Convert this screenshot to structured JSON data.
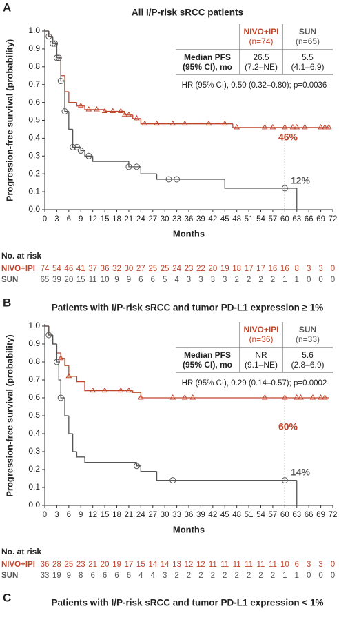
{
  "chart_data": [
    {
      "type": "line",
      "panel": "A",
      "title": "All I/P-risk sRCC patients",
      "x_label": "Months",
      "y_label": "Progression-free survival (probability)",
      "xlim": [
        0,
        72
      ],
      "ylim": [
        0,
        1
      ],
      "xticks": [
        0,
        3,
        6,
        9,
        12,
        15,
        18,
        21,
        24,
        27,
        30,
        33,
        36,
        39,
        42,
        45,
        48,
        51,
        54,
        57,
        60,
        63,
        66,
        69,
        72
      ],
      "yticks": [
        {
          "value": 0,
          "label": "0.0"
        },
        0.1,
        0.2,
        0.3,
        0.4,
        0.5,
        0.6,
        0.7,
        0.8,
        0.9,
        {
          "value": 1,
          "label": "1.0"
        }
      ],
      "series": [
        {
          "name": "NIVO+IPI",
          "color": "#c0462b",
          "marker": "triangle",
          "end_label": "46%",
          "x": [
            0,
            1,
            2,
            3,
            4,
            5,
            6,
            8,
            10,
            15,
            20,
            22,
            24,
            47,
            71
          ],
          "values": [
            1,
            0.97,
            0.93,
            0.85,
            0.75,
            0.66,
            0.6,
            0.58,
            0.56,
            0.55,
            0.53,
            0.51,
            0.48,
            0.46,
            0.46
          ],
          "censored": {
            "x": [
              9,
              11,
              13,
              15,
              17,
              19,
              20,
              21,
              23,
              25,
              28,
              32,
              35,
              41,
              45,
              48,
              55,
              57,
              60,
              62,
              63,
              65,
              69,
              70,
              71
            ],
            "values": [
              0.58,
              0.56,
              0.56,
              0.55,
              0.55,
              0.55,
              0.53,
              0.53,
              0.51,
              0.48,
              0.48,
              0.48,
              0.48,
              0.48,
              0.48,
              0.46,
              0.46,
              0.46,
              0.46,
              0.46,
              0.46,
              0.46,
              0.46,
              0.46,
              0.46
            ]
          },
          "at_risk": [
            74,
            54,
            46,
            41,
            37,
            36,
            32,
            30,
            27,
            25,
            25,
            24,
            23,
            22,
            20,
            19,
            18,
            17,
            17,
            16,
            16,
            8,
            3,
            3,
            0
          ]
        },
        {
          "name": "SUN",
          "color": "#555555",
          "marker": "circle",
          "end_label": "12%",
          "x": [
            0,
            1,
            2,
            3,
            4,
            5,
            6,
            7,
            9,
            10,
            12,
            21,
            24,
            28,
            45,
            63
          ],
          "values": [
            1,
            0.97,
            0.93,
            0.85,
            0.72,
            0.55,
            0.45,
            0.35,
            0.33,
            0.3,
            0.27,
            0.24,
            0.2,
            0.17,
            0.12,
            0
          ],
          "censored": {
            "x": [
              1,
              2,
              2.5,
              3,
              3.5,
              4,
              5,
              7,
              8,
              9,
              11,
              21,
              23,
              31,
              33,
              60
            ],
            "values": [
              0.97,
              0.93,
              0.93,
              0.85,
              0.85,
              0.72,
              0.55,
              0.35,
              0.35,
              0.33,
              0.3,
              0.24,
              0.24,
              0.17,
              0.17,
              0.12
            ]
          },
          "at_risk": [
            65,
            39,
            20,
            15,
            11,
            10,
            9,
            9,
            6,
            6,
            5,
            4,
            3,
            3,
            3,
            3,
            2,
            2,
            2,
            2,
            1,
            1,
            0,
            0,
            0
          ]
        }
      ],
      "at_risk_title": "No. at risk",
      "table": {
        "columns": [
          [
            "NIVO+IPI",
            "(n=74)"
          ],
          [
            "SUN",
            "(n=65)"
          ]
        ],
        "row_label": [
          "Median PFS",
          "(95% CI), mo"
        ],
        "cells": [
          [
            "26.5",
            "(7.2–NE)"
          ],
          [
            "5.5",
            "(4.1–6.9)"
          ]
        ],
        "footer": "HR (95% CI), 0.50 (0.32–0.80); p=0.0036"
      }
    },
    {
      "type": "line",
      "panel": "B",
      "title": "Patients with I/P-risk sRCC and tumor PD-L1 expression ≥ 1%",
      "x_label": "Months",
      "y_label": "Progression-free survival (probability)",
      "xlim": [
        0,
        72
      ],
      "ylim": [
        0,
        1
      ],
      "xticks": [
        0,
        3,
        6,
        9,
        12,
        15,
        18,
        21,
        24,
        27,
        30,
        33,
        36,
        39,
        42,
        45,
        48,
        51,
        54,
        57,
        60,
        63,
        66,
        69,
        72
      ],
      "yticks": [
        {
          "value": 0,
          "label": "0.0"
        },
        0.1,
        0.2,
        0.3,
        0.4,
        0.5,
        0.6,
        0.7,
        0.8,
        0.9,
        {
          "value": 1,
          "label": "1.0"
        }
      ],
      "series": [
        {
          "name": "NIVO+IPI",
          "color": "#c0462b",
          "marker": "triangle",
          "end_label": "60%",
          "x": [
            0,
            1,
            2,
            3,
            4,
            5,
            6,
            8,
            10,
            22,
            24,
            71
          ],
          "values": [
            1,
            0.95,
            0.9,
            0.85,
            0.82,
            0.78,
            0.72,
            0.69,
            0.64,
            0.63,
            0.6,
            0.6
          ],
          "censored": {
            "x": [
              4,
              6,
              12,
              15,
              19,
              21,
              24,
              32,
              35,
              37,
              55,
              60,
              63,
              64,
              67,
              69,
              70
            ],
            "values": [
              0.82,
              0.72,
              0.64,
              0.64,
              0.64,
              0.64,
              0.6,
              0.6,
              0.6,
              0.6,
              0.6,
              0.6,
              0.6,
              0.6,
              0.6,
              0.6,
              0.6
            ]
          },
          "at_risk": [
            36,
            28,
            25,
            23,
            21,
            20,
            19,
            17,
            15,
            14,
            14,
            13,
            12,
            12,
            11,
            11,
            11,
            11,
            11,
            11,
            10,
            6,
            3,
            3,
            0
          ]
        },
        {
          "name": "SUN",
          "color": "#555555",
          "marker": "circle",
          "end_label": "14%",
          "x": [
            0,
            1,
            2,
            3,
            3.5,
            4,
            5,
            6,
            7,
            8,
            10,
            23,
            24,
            28,
            63
          ],
          "values": [
            1,
            0.95,
            0.9,
            0.8,
            0.7,
            0.6,
            0.5,
            0.4,
            0.3,
            0.27,
            0.24,
            0.22,
            0.19,
            0.14,
            0
          ],
          "censored": {
            "x": [
              1,
              3,
              4,
              23,
              32,
              60
            ],
            "values": [
              0.95,
              0.8,
              0.6,
              0.22,
              0.14,
              0.14
            ]
          },
          "at_risk": [
            33,
            19,
            9,
            8,
            6,
            6,
            6,
            6,
            4,
            4,
            3,
            2,
            2,
            2,
            2,
            2,
            2,
            2,
            2,
            2,
            1,
            1,
            0,
            0,
            0
          ]
        }
      ],
      "at_risk_title": "No. at risk",
      "table": {
        "columns": [
          [
            "NIVO+IPI",
            "(n=36)"
          ],
          [
            "SUN",
            "(n=33)"
          ]
        ],
        "row_label": [
          "Median PFS",
          "(95% CI), mo"
        ],
        "cells": [
          [
            "NR",
            "(9.1–NE)"
          ],
          [
            "5.6",
            "(2.8–6.9)"
          ]
        ],
        "footer": "HR (95% CI), 0.29 (0.14–0.57); p=0.0002"
      }
    },
    {
      "type": "line",
      "panel": "C",
      "title": "Patients with I/P-risk sRCC and tumor PD-L1 expression < 1%"
    }
  ]
}
